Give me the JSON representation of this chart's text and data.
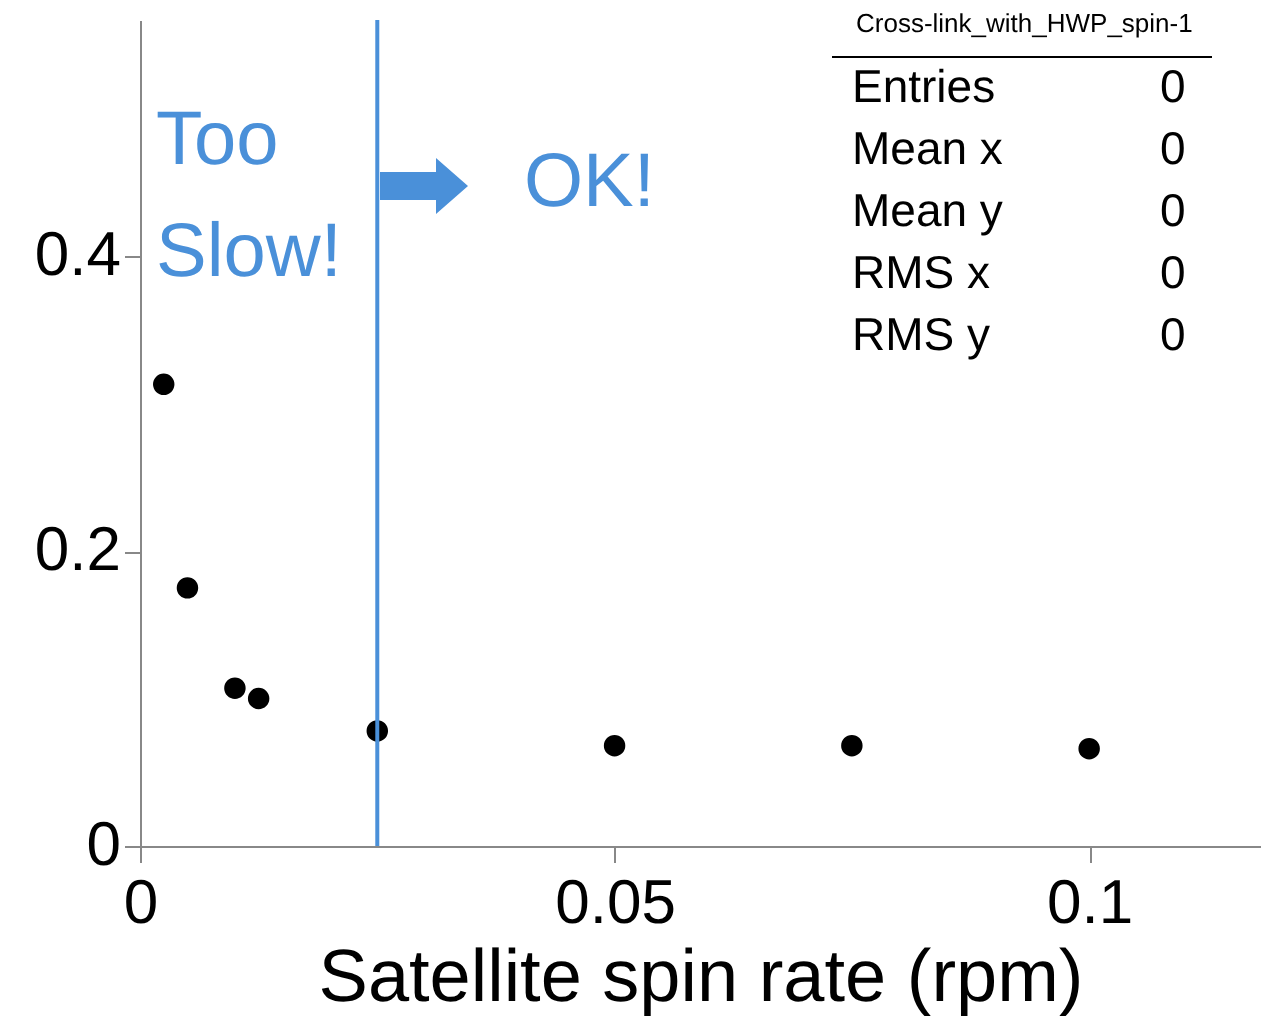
{
  "chart_data": {
    "type": "scatter",
    "xlabel": "Satellite spin rate (rpm)",
    "x": [
      0.0025,
      0.005,
      0.01,
      0.0125,
      0.025,
      0.05,
      0.075,
      0.1
    ],
    "series": [
      {
        "color": "#000000",
        "values": [
          0.313,
          0.175,
          0.107,
          0.1,
          0.078,
          0.068,
          0.068,
          0.066
        ]
      }
    ],
    "xlim": [
      0,
      0.118
    ],
    "xticks": [
      0,
      0.05,
      0.1
    ],
    "ylim": [
      0,
      0.56
    ],
    "yticks": [
      0,
      0.2,
      0.4
    ],
    "marker": "circle",
    "grid": false,
    "legend": false,
    "ref_lines": [
      {
        "axis": "x",
        "value": 0.025,
        "color": "#4a90d9"
      }
    ],
    "annotations": [
      "Too Slow!",
      "OK!",
      "Cross-link_with_HWP_spin-1",
      "Entries",
      "0",
      "Mean x",
      "0",
      "Mean y",
      "0",
      "RMS x",
      "0",
      "RMS y",
      "0"
    ]
  }
}
